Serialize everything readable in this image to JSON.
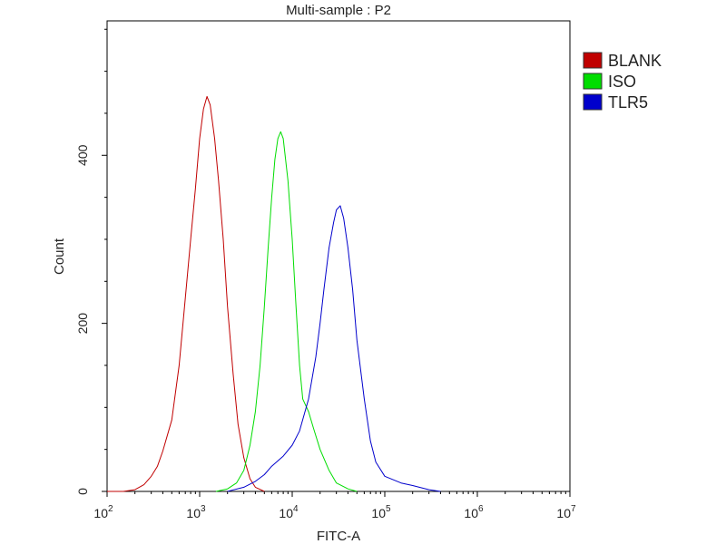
{
  "chart_data": {
    "type": "line",
    "title": "Multi-sample : P2",
    "xlabel": "FITC-A",
    "ylabel": "Count",
    "xscale": "log",
    "xlim": [
      100,
      10000000
    ],
    "ylim": [
      0,
      560
    ],
    "x_ticks": [
      {
        "value": 100,
        "base": "10",
        "exp": "2"
      },
      {
        "value": 1000,
        "base": "10",
        "exp": "3"
      },
      {
        "value": 10000,
        "base": "10",
        "exp": "4"
      },
      {
        "value": 100000,
        "base": "10",
        "exp": "5"
      },
      {
        "value": 1000000,
        "base": "10",
        "exp": "6"
      },
      {
        "value": 10000000,
        "base": "10",
        "exp": "7"
      }
    ],
    "y_ticks": [
      0,
      200,
      400
    ],
    "grid": false,
    "legend_position": "top-right",
    "series": [
      {
        "name": "BLANK",
        "color": "#c00000",
        "points": [
          [
            100,
            0
          ],
          [
            150,
            0
          ],
          [
            200,
            2
          ],
          [
            250,
            8
          ],
          [
            300,
            18
          ],
          [
            350,
            30
          ],
          [
            400,
            48
          ],
          [
            500,
            85
          ],
          [
            600,
            150
          ],
          [
            700,
            230
          ],
          [
            800,
            300
          ],
          [
            900,
            360
          ],
          [
            1000,
            420
          ],
          [
            1100,
            455
          ],
          [
            1200,
            470
          ],
          [
            1300,
            460
          ],
          [
            1450,
            420
          ],
          [
            1600,
            370
          ],
          [
            1800,
            300
          ],
          [
            2000,
            220
          ],
          [
            2300,
            140
          ],
          [
            2600,
            80
          ],
          [
            3000,
            40
          ],
          [
            3500,
            15
          ],
          [
            4000,
            5
          ],
          [
            5000,
            0
          ]
        ]
      },
      {
        "name": "ISO",
        "color": "#00dd00",
        "points": [
          [
            1500,
            0
          ],
          [
            2000,
            3
          ],
          [
            2500,
            10
          ],
          [
            3000,
            25
          ],
          [
            3500,
            55
          ],
          [
            4000,
            95
          ],
          [
            4500,
            150
          ],
          [
            5000,
            220
          ],
          [
            5500,
            290
          ],
          [
            6000,
            350
          ],
          [
            6500,
            395
          ],
          [
            7000,
            420
          ],
          [
            7500,
            428
          ],
          [
            8000,
            420
          ],
          [
            9000,
            370
          ],
          [
            10000,
            300
          ],
          [
            11000,
            220
          ],
          [
            12000,
            150
          ],
          [
            13000,
            110
          ],
          [
            15000,
            95
          ],
          [
            17000,
            75
          ],
          [
            20000,
            50
          ],
          [
            25000,
            25
          ],
          [
            30000,
            10
          ],
          [
            40000,
            3
          ],
          [
            50000,
            0
          ]
        ]
      },
      {
        "name": "TLR5",
        "color": "#0000cc",
        "points": [
          [
            2000,
            0
          ],
          [
            3000,
            5
          ],
          [
            4000,
            12
          ],
          [
            5000,
            20
          ],
          [
            6000,
            30
          ],
          [
            8000,
            42
          ],
          [
            10000,
            55
          ],
          [
            12000,
            72
          ],
          [
            15000,
            110
          ],
          [
            18000,
            160
          ],
          [
            20000,
            200
          ],
          [
            22000,
            240
          ],
          [
            25000,
            290
          ],
          [
            28000,
            320
          ],
          [
            30000,
            335
          ],
          [
            33000,
            340
          ],
          [
            36000,
            325
          ],
          [
            40000,
            290
          ],
          [
            45000,
            240
          ],
          [
            50000,
            180
          ],
          [
            60000,
            110
          ],
          [
            70000,
            60
          ],
          [
            80000,
            35
          ],
          [
            100000,
            18
          ],
          [
            150000,
            10
          ],
          [
            200000,
            7
          ],
          [
            300000,
            2
          ],
          [
            400000,
            0
          ]
        ]
      }
    ]
  }
}
